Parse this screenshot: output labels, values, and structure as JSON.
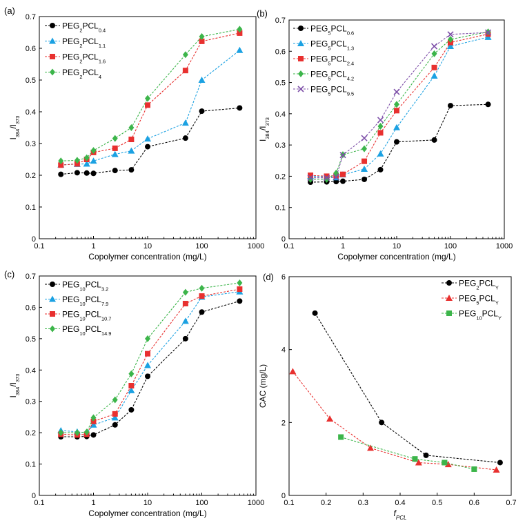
{
  "colors": {
    "black": "#000000",
    "blue": "#1ba1e2",
    "red": "#e8302f",
    "green": "#3cb54a",
    "purple": "#7d4fa8"
  },
  "chart_data": [
    {
      "panel": "(a)",
      "type": "line",
      "xscale": "log",
      "xlabel": "Copolymer concentration (mg/L)",
      "ylabel_main": "I",
      "ylabel_sub1": "384",
      "ylabel_mid": "/I",
      "ylabel_sub2": "373",
      "xlim": [
        0.1,
        1000
      ],
      "ylim": [
        0,
        0.7
      ],
      "xticks": [
        0.1,
        1,
        10,
        100,
        1000
      ],
      "xtick_labels": [
        "0.1",
        "1",
        "10",
        "100",
        "1000"
      ],
      "yticks": [
        0,
        0.1,
        0.2,
        0.3,
        0.4,
        0.5,
        0.6,
        0.7
      ],
      "ytick_labels": [
        "0",
        "0.1",
        "0.2",
        "0.3",
        "0.4",
        "0.5",
        "0.6",
        "0.7"
      ],
      "legend_position": "top-left",
      "series": [
        {
          "name_main": "PEG",
          "name_sub1": "2",
          "name_mid": "PCL",
          "name_sub2": "0.4",
          "color": "#000000",
          "marker": "circle",
          "x": [
            0.25,
            0.5,
            0.75,
            1,
            2.5,
            5,
            10,
            50,
            100,
            500
          ],
          "y": [
            0.203,
            0.208,
            0.207,
            0.206,
            0.215,
            0.217,
            0.29,
            0.317,
            0.402,
            0.412
          ]
        },
        {
          "name_main": "PEG",
          "name_sub1": "2",
          "name_mid": "PCL",
          "name_sub2": "1.1",
          "color": "#1ba1e2",
          "marker": "triangle",
          "x": [
            0.25,
            0.5,
            0.75,
            1,
            2.5,
            5,
            10,
            50,
            100,
            500
          ],
          "y": [
            0.233,
            0.235,
            0.236,
            0.245,
            0.266,
            0.277,
            0.315,
            0.365,
            0.5,
            0.594
          ]
        },
        {
          "name_main": "PEG",
          "name_sub1": "2",
          "name_mid": "PCL",
          "name_sub2": "1.6",
          "color": "#e8302f",
          "marker": "square",
          "x": [
            0.25,
            0.5,
            0.75,
            1,
            2.5,
            5,
            10,
            50,
            100,
            500
          ],
          "y": [
            0.232,
            0.236,
            0.25,
            0.272,
            0.285,
            0.313,
            0.421,
            0.53,
            0.622,
            0.648
          ]
        },
        {
          "name_main": "PEG",
          "name_sub1": "2",
          "name_mid": "PCL",
          "name_sub2": "4",
          "color": "#3cb54a",
          "marker": "diamond",
          "x": [
            0.25,
            0.5,
            0.75,
            1,
            2.5,
            5,
            10,
            50,
            100,
            500
          ],
          "y": [
            0.245,
            0.247,
            0.255,
            0.278,
            0.316,
            0.35,
            0.442,
            0.58,
            0.637,
            0.66
          ]
        }
      ]
    },
    {
      "panel": "(b)",
      "type": "line",
      "xscale": "log",
      "xlabel": "Copolymer concentration (mg/L)",
      "ylabel_main": "I",
      "ylabel_sub1": "384",
      "ylabel_mid": "/I",
      "ylabel_sub2": "373",
      "xlim": [
        0.1,
        1000
      ],
      "ylim": [
        0,
        0.7
      ],
      "xticks": [
        0.1,
        1,
        10,
        100,
        1000
      ],
      "xtick_labels": [
        "0.1",
        "1",
        "10",
        "100",
        "1000"
      ],
      "yticks": [
        0,
        0.1,
        0.2,
        0.3,
        0.4,
        0.5,
        0.6,
        0.7
      ],
      "ytick_labels": [
        "0",
        "0.1",
        "0.2",
        "0.3",
        "0.4",
        "0.5",
        "0.6",
        "0.7"
      ],
      "legend_position": "top-left",
      "series": [
        {
          "name_main": "PEG",
          "name_sub1": "5",
          "name_mid": "PCL",
          "name_sub2": "0.6",
          "color": "#000000",
          "marker": "circle",
          "x": [
            0.25,
            0.5,
            0.75,
            1,
            2.5,
            5,
            10,
            50,
            100,
            500
          ],
          "y": [
            0.181,
            0.182,
            0.183,
            0.184,
            0.19,
            0.221,
            0.31,
            0.316,
            0.426,
            0.43
          ]
        },
        {
          "name_main": "PEG",
          "name_sub1": "5",
          "name_mid": "PCL",
          "name_sub2": "1.3",
          "color": "#1ba1e2",
          "marker": "triangle",
          "x": [
            0.25,
            0.5,
            0.75,
            1,
            2.5,
            5,
            10,
            50,
            100,
            500
          ],
          "y": [
            0.2,
            0.198,
            0.196,
            0.205,
            0.223,
            0.272,
            0.356,
            0.521,
            0.616,
            0.645
          ]
        },
        {
          "name_main": "PEG",
          "name_sub1": "5",
          "name_mid": "PCL",
          "name_sub2": "2.4",
          "color": "#e8302f",
          "marker": "square",
          "x": [
            0.25,
            0.5,
            0.75,
            1,
            2.5,
            5,
            10,
            50,
            100,
            500
          ],
          "y": [
            0.203,
            0.2,
            0.202,
            0.206,
            0.248,
            0.339,
            0.41,
            0.548,
            0.628,
            0.655
          ]
        },
        {
          "name_main": "PEG",
          "name_sub1": "5",
          "name_mid": "PCL",
          "name_sub2": "4.2",
          "color": "#3cb54a",
          "marker": "diamond",
          "x": [
            0.25,
            0.5,
            0.75,
            1,
            2.5,
            5,
            10,
            50,
            100,
            500
          ],
          "y": [
            0.19,
            0.19,
            0.21,
            0.269,
            0.288,
            0.36,
            0.43,
            0.592,
            0.638,
            0.662
          ]
        },
        {
          "name_main": "PEG",
          "name_sub1": "5",
          "name_mid": "PCL",
          "name_sub2": "9.5",
          "color": "#7d4fa8",
          "marker": "x",
          "x": [
            0.25,
            0.5,
            0.75,
            1,
            2.5,
            5,
            10,
            50,
            100,
            500
          ],
          "y": [
            0.195,
            0.195,
            0.197,
            0.268,
            0.322,
            0.38,
            0.47,
            0.616,
            0.654,
            0.66
          ]
        }
      ]
    },
    {
      "panel": "(c)",
      "type": "line",
      "xscale": "log",
      "xlabel": "Copolymer concentration (mg/L)",
      "ylabel_main": "I",
      "ylabel_sub1": "384",
      "ylabel_mid": "/I",
      "ylabel_sub2": "373",
      "xlim": [
        0.1,
        1000
      ],
      "ylim": [
        0,
        0.7
      ],
      "xticks": [
        0.1,
        1,
        10,
        100,
        1000
      ],
      "xtick_labels": [
        "0.1",
        "1",
        "10",
        "100",
        "1000"
      ],
      "yticks": [
        0,
        0.1,
        0.2,
        0.3,
        0.4,
        0.5,
        0.6,
        0.7
      ],
      "ytick_labels": [
        "0",
        "0.1",
        "0.2",
        "0.3",
        "0.4",
        "0.5",
        "0.6",
        "0.7"
      ],
      "legend_position": "top-left",
      "series": [
        {
          "name_main": "PEG",
          "name_sub1": "10",
          "name_mid": "PCL",
          "name_sub2": "3.2",
          "color": "#000000",
          "marker": "circle",
          "x": [
            0.25,
            0.5,
            0.75,
            1,
            2.5,
            5,
            10,
            50,
            100,
            500
          ],
          "y": [
            0.187,
            0.187,
            0.188,
            0.193,
            0.225,
            0.273,
            0.38,
            0.5,
            0.585,
            0.62
          ]
        },
        {
          "name_main": "PEG",
          "name_sub1": "10",
          "name_mid": "PCL",
          "name_sub2": "7.9",
          "color": "#1ba1e2",
          "marker": "triangle",
          "x": [
            0.25,
            0.5,
            0.75,
            1,
            2.5,
            5,
            10,
            50,
            100,
            500
          ],
          "y": [
            0.207,
            0.203,
            0.2,
            0.225,
            0.248,
            0.335,
            0.415,
            0.556,
            0.633,
            0.65
          ]
        },
        {
          "name_main": "PEG",
          "name_sub1": "10",
          "name_mid": "PCL",
          "name_sub2": "10.7",
          "color": "#e8302f",
          "marker": "square",
          "x": [
            0.25,
            0.5,
            0.75,
            1,
            2.5,
            5,
            10,
            50,
            100,
            500
          ],
          "y": [
            0.195,
            0.193,
            0.195,
            0.236,
            0.26,
            0.35,
            0.452,
            0.612,
            0.636,
            0.658
          ]
        },
        {
          "name_main": "PEG",
          "name_sub1": "10",
          "name_mid": "PCL",
          "name_sub2": "14.9",
          "color": "#3cb54a",
          "marker": "diamond",
          "x": [
            0.25,
            0.5,
            0.75,
            1,
            2.5,
            5,
            10,
            50,
            100,
            500
          ],
          "y": [
            0.2,
            0.2,
            0.202,
            0.248,
            0.305,
            0.388,
            0.5,
            0.648,
            0.661,
            0.678
          ]
        }
      ]
    },
    {
      "panel": "(d)",
      "type": "line",
      "xscale": "linear",
      "xlabel": "fPCL",
      "xlabel_main": "f",
      "xlabel_sub": "PCL",
      "ylabel": "CAC (mg/L)",
      "xlim": [
        0.1,
        0.7
      ],
      "ylim": [
        0,
        6
      ],
      "xticks": [
        0.1,
        0.2,
        0.3,
        0.4,
        0.5,
        0.6,
        0.7
      ],
      "xtick_labels": [
        "0.1",
        "0.2",
        "0.3",
        "0.4",
        "0.5",
        "0.6",
        "0.7"
      ],
      "yticks": [
        0,
        2,
        4,
        6
      ],
      "ytick_labels": [
        "0",
        "2",
        "4",
        "6"
      ],
      "legend_position": "top-right",
      "series": [
        {
          "name_main": "PEG",
          "name_sub1": "2",
          "name_mid": "PCL",
          "name_sub2": "Y",
          "color": "#000000",
          "marker": "circle",
          "x": [
            0.17,
            0.35,
            0.47,
            0.67
          ],
          "y": [
            5.0,
            2.0,
            1.1,
            0.9
          ]
        },
        {
          "name_main": "PEG",
          "name_sub1": "5",
          "name_mid": "PCL",
          "name_sub2": "Y",
          "color": "#e8302f",
          "marker": "triangle",
          "x": [
            0.11,
            0.21,
            0.32,
            0.45,
            0.53,
            0.66
          ],
          "y": [
            3.4,
            2.1,
            1.3,
            0.9,
            0.85,
            0.7
          ]
        },
        {
          "name_main": "PEG",
          "name_sub1": "10",
          "name_mid": "PCL",
          "name_sub2": "Y",
          "color": "#3cb54a",
          "marker": "square",
          "x": [
            0.24,
            0.44,
            0.52,
            0.6
          ],
          "y": [
            1.6,
            1.0,
            0.9,
            0.72
          ]
        }
      ]
    }
  ]
}
